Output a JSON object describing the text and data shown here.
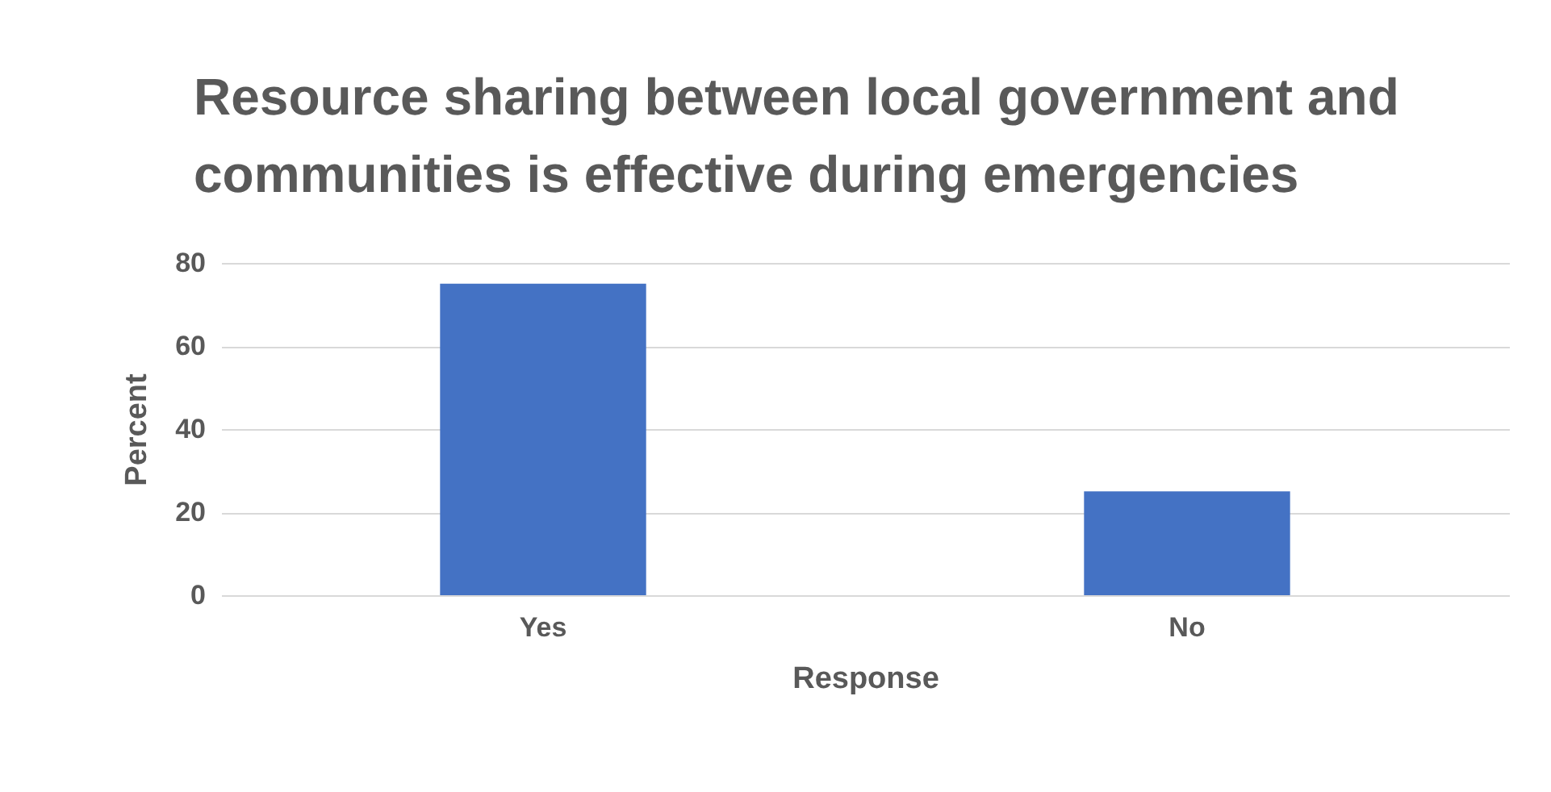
{
  "chart_data": {
    "type": "bar",
    "title": "Resource sharing between local government and communities is effective during emergencies",
    "xlabel": "Response",
    "ylabel": "Percent",
    "categories": [
      "Yes",
      "No"
    ],
    "values": [
      75,
      25
    ],
    "color": "#4472c4",
    "ylim": [
      0,
      80
    ],
    "yticks": [
      0,
      20,
      40,
      60,
      80
    ],
    "grid": "y"
  }
}
